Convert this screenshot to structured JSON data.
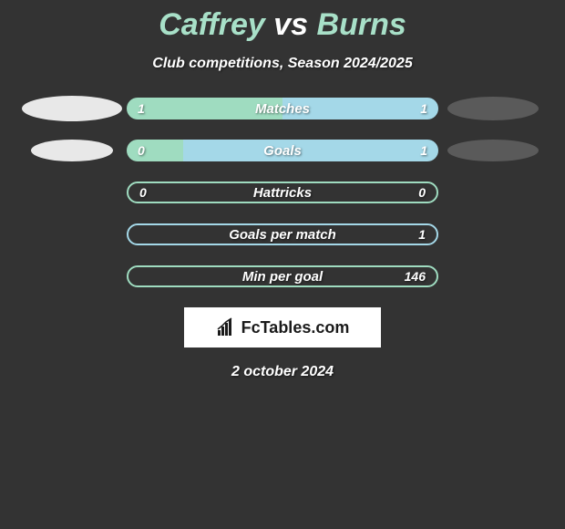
{
  "title": {
    "player1": "Caffrey",
    "vs": "vs",
    "player2": "Burns",
    "color1": "#a8e0c8",
    "color_vs": "#ffffff",
    "color2": "#a8e0c8"
  },
  "subtitle": "Club competitions, Season 2024/2025",
  "track_width": 342,
  "colors": {
    "left_bar": "#9fdcc0",
    "right_bar": "#a4d8e8",
    "border_left": "#9fdcc0",
    "border_right": "#a4d8e8",
    "ellipse_left": "#e8e8e8",
    "ellipse_right": "#5a5a5a",
    "background": "#333333"
  },
  "rows": [
    {
      "label": "Matches",
      "left_val": "1",
      "right_val": "1",
      "left_pct": 50,
      "right_pct": 50,
      "border": "none",
      "ellipse_left": {
        "w": 110,
        "h": 28
      },
      "ellipse_right": {
        "w": 100,
        "h": 26
      }
    },
    {
      "label": "Goals",
      "left_val": "0",
      "right_val": "1",
      "left_pct": 18,
      "right_pct": 82,
      "border": "none",
      "ellipse_left": {
        "w": 90,
        "h": 24
      },
      "ellipse_right": {
        "w": 100,
        "h": 24
      }
    },
    {
      "label": "Hattricks",
      "left_val": "0",
      "right_val": "0",
      "left_pct": 0,
      "right_pct": 0,
      "border": "left",
      "ellipse_left": null,
      "ellipse_right": null
    },
    {
      "label": "Goals per match",
      "left_val": "",
      "right_val": "1",
      "left_pct": 0,
      "right_pct": 0,
      "border": "right",
      "ellipse_left": null,
      "ellipse_right": null
    },
    {
      "label": "Min per goal",
      "left_val": "",
      "right_val": "146",
      "left_pct": 0,
      "right_pct": 0,
      "border": "left",
      "ellipse_left": null,
      "ellipse_right": null
    }
  ],
  "logo_text": "FcTables.com",
  "date": "2 october 2024"
}
